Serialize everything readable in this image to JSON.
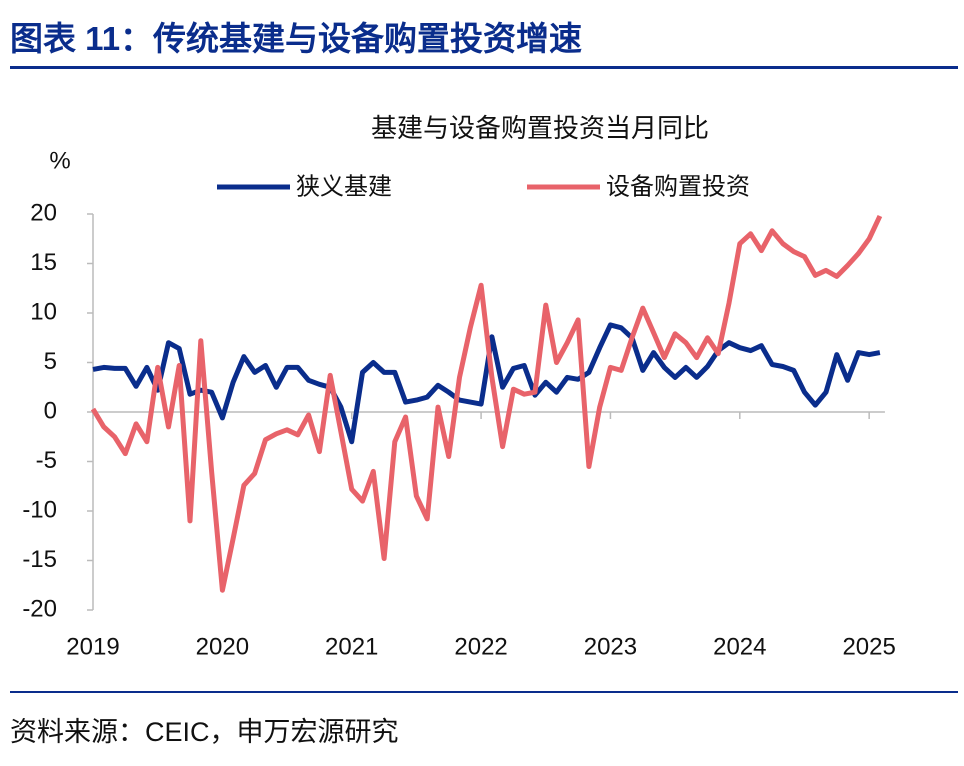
{
  "header": {
    "title": "图表 11：传统基建与设备购置投资增速"
  },
  "chart_data": {
    "type": "line",
    "title": "基建与设备购置投资当月同比",
    "y_label": "%",
    "categories": [
      "2019",
      null,
      null,
      null,
      null,
      null,
      null,
      null,
      null,
      null,
      null,
      null,
      "2020",
      null,
      null,
      null,
      null,
      null,
      null,
      null,
      null,
      null,
      null,
      null,
      "2021",
      null,
      null,
      null,
      null,
      null,
      null,
      null,
      null,
      null,
      null,
      null,
      "2022",
      null,
      null,
      null,
      null,
      null,
      null,
      null,
      null,
      null,
      null,
      null,
      "2023",
      null,
      null,
      null,
      null,
      null,
      null,
      null,
      null,
      null,
      null,
      null,
      "2024",
      null,
      null,
      null,
      null,
      null,
      null,
      null,
      null,
      null,
      null,
      null,
      "2025",
      null
    ],
    "series": [
      {
        "name": "狭义基建",
        "color": "#0a2d8c",
        "values": [
          4.3,
          4.5,
          4.4,
          4.4,
          2.6,
          4.5,
          2.2,
          7.0,
          6.4,
          1.8,
          2.2,
          2.0,
          -0.6,
          3.0,
          5.6,
          4.0,
          4.7,
          2.5,
          4.5,
          4.5,
          3.2,
          2.8,
          2.5,
          0.5,
          -3.0,
          4.0,
          5.0,
          4.0,
          4.0,
          1.0,
          1.2,
          1.5,
          2.7,
          2.0,
          1.2,
          1.0,
          0.8,
          7.6,
          2.5,
          4.4,
          4.7,
          1.7,
          3.0,
          2.0,
          3.5,
          3.3,
          4.0,
          6.5,
          8.8,
          8.5,
          7.5,
          4.2,
          6.0,
          4.5,
          3.5,
          4.5,
          3.5,
          4.6,
          6.2,
          7.0,
          6.5,
          6.2,
          6.7,
          4.8,
          4.6,
          4.2,
          2.0,
          0.7,
          2.0,
          5.8,
          3.2,
          6.0,
          5.8,
          6.0
        ]
      },
      {
        "name": "设备购置投资",
        "color": "#e8636a",
        "values": [
          0.3,
          -1.5,
          -2.5,
          -4.2,
          -1.2,
          -3.0,
          4.5,
          -1.5,
          4.7,
          -11.0,
          7.2,
          -6.0,
          -18.0,
          -12.8,
          -7.4,
          -6.2,
          -2.8,
          -2.2,
          -1.8,
          -2.3,
          -0.3,
          -4.0,
          3.7,
          -2.0,
          -7.8,
          -9.0,
          -6.0,
          -14.8,
          -3.0,
          -0.5,
          -8.5,
          -10.8,
          0.5,
          -4.5,
          3.5,
          8.5,
          12.8,
          3.5,
          -3.5,
          2.3,
          1.8,
          2.0,
          10.8,
          5.0,
          7.0,
          9.3,
          -5.5,
          0.5,
          4.5,
          4.2,
          7.5,
          10.5,
          8.0,
          5.5,
          7.9,
          7.0,
          5.5,
          7.5,
          5.9,
          11.0,
          17.0,
          18.0,
          16.3,
          18.3,
          17.0,
          16.2,
          15.7,
          13.8,
          14.3,
          13.7,
          14.8,
          16.0,
          17.5,
          19.8
        ]
      }
    ],
    "ylim": [
      -20,
      20
    ],
    "yticks": [
      -20,
      -15,
      -10,
      -5,
      0,
      5,
      10,
      15,
      20
    ],
    "legend": "top"
  },
  "footer": {
    "source": "资料来源：CEIC，申万宏源研究"
  }
}
